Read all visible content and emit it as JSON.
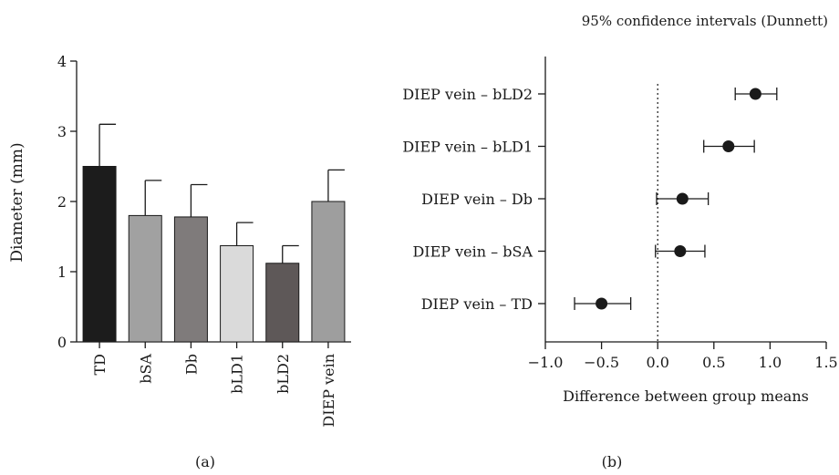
{
  "chart_data": [
    {
      "type": "bar",
      "panel_label": "(a)",
      "title": "",
      "xlabel": "",
      "ylabel": "Diameter (mm)",
      "ylim": [
        0,
        4
      ],
      "yticks": [
        0,
        1,
        2,
        3,
        4
      ],
      "grid": false,
      "categories": [
        "TD",
        "bSA",
        "Db",
        "bLD1",
        "bLD2",
        "DIEP vein"
      ],
      "values": [
        2.5,
        1.8,
        1.78,
        1.37,
        1.12,
        2.0
      ],
      "error_upper": [
        0.6,
        0.5,
        0.46,
        0.33,
        0.25,
        0.45
      ],
      "bar_colors": [
        "#1c1c1c",
        "#a1a1a1",
        "#7f7b7b",
        "#dadada",
        "#5e5858",
        "#9e9e9e"
      ]
    },
    {
      "type": "scatter",
      "panel_label": "(b)",
      "title": "95% confidence intervals (Dunnett)",
      "xlabel": "Difference between group means",
      "ylabel": "",
      "xlim": [
        -1.0,
        1.5
      ],
      "xticks": [
        -1.0,
        -0.5,
        0.0,
        0.5,
        1.0,
        1.5
      ],
      "xtick_labels": [
        "−1.0",
        "−0.5",
        "0.0",
        "0.5",
        "1.0",
        "1.5"
      ],
      "grid": false,
      "reference_line_x": 0.0,
      "categories": [
        "DIEP vein – bLD2",
        "DIEP vein – bLD1",
        "DIEP vein – Db",
        "DIEP vein – bSA",
        "DIEP vein – TD"
      ],
      "values": [
        0.87,
        0.63,
        0.22,
        0.2,
        -0.5
      ],
      "ci_low": [
        0.69,
        0.41,
        -0.01,
        -0.02,
        -0.74
      ],
      "ci_high": [
        1.06,
        0.86,
        0.45,
        0.42,
        -0.24
      ],
      "point_color": "#1a1a1a"
    }
  ]
}
